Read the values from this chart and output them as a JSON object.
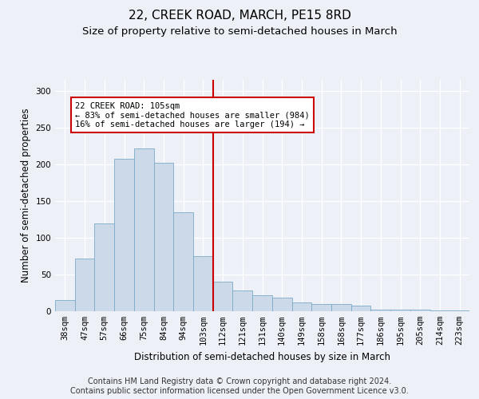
{
  "title": "22, CREEK ROAD, MARCH, PE15 8RD",
  "subtitle": "Size of property relative to semi-detached houses in March",
  "xlabel": "Distribution of semi-detached houses by size in March",
  "ylabel": "Number of semi-detached properties",
  "footer_line1": "Contains HM Land Registry data © Crown copyright and database right 2024.",
  "footer_line2": "Contains public sector information licensed under the Open Government Licence v3.0.",
  "bins": [
    "38sqm",
    "47sqm",
    "57sqm",
    "66sqm",
    "75sqm",
    "84sqm",
    "94sqm",
    "103sqm",
    "112sqm",
    "121sqm",
    "131sqm",
    "140sqm",
    "149sqm",
    "158sqm",
    "168sqm",
    "177sqm",
    "186sqm",
    "195sqm",
    "205sqm",
    "214sqm",
    "223sqm"
  ],
  "values": [
    15,
    72,
    120,
    208,
    222,
    202,
    135,
    75,
    40,
    28,
    22,
    18,
    12,
    10,
    10,
    8,
    2,
    2,
    2,
    1,
    1
  ],
  "bar_color": "#ccd9e8",
  "bar_edge_color": "#7aaac8",
  "highlight_color": "#cc0000",
  "annotation_line1": "22 CREEK ROAD: 105sqm",
  "annotation_line2": "← 83% of semi-detached houses are smaller (984)",
  "annotation_line3": "16% of semi-detached houses are larger (194) →",
  "annotation_box_color": "white",
  "annotation_box_edge": "#cc0000",
  "ylim": [
    0,
    315
  ],
  "yticks": [
    0,
    50,
    100,
    150,
    200,
    250,
    300
  ],
  "background_color": "#edf1f7",
  "grid_color": "white",
  "title_fontsize": 11,
  "subtitle_fontsize": 9.5,
  "axis_label_fontsize": 8.5,
  "tick_fontsize": 7.5,
  "footer_fontsize": 7
}
